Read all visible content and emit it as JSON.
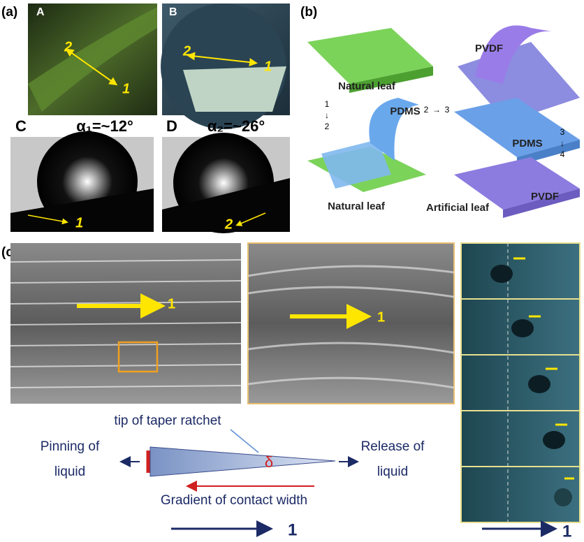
{
  "panel_a": {
    "label": "(a)",
    "photos": [
      {
        "label": "A",
        "start": "2",
        "end": "1"
      },
      {
        "label": "B",
        "start": "2",
        "end": "1"
      }
    ],
    "droplets": [
      {
        "label": "C",
        "angle": "α₁=~12°",
        "arrow": "1"
      },
      {
        "label": "D",
        "angle": "α₂=~26°",
        "arrow": "2"
      }
    ]
  },
  "panel_b": {
    "label": "(b)",
    "labels": [
      "Natural leaf",
      "PVDF",
      "PDMS",
      "PDMS",
      "Natural leaf",
      "Artificial leaf",
      "PVDF"
    ],
    "steps": [
      {
        "from": "1",
        "arrow": "↓",
        "to": "2"
      },
      {
        "from": "2",
        "arrow": "→",
        "to": "3"
      },
      {
        "from": "3",
        "arrow": "↓",
        "to": "4"
      }
    ]
  },
  "panel_c": {
    "label": "(c)",
    "sem": [
      "1",
      "1"
    ],
    "tip": "tip of taper ratchet",
    "pinning": [
      "Pinning of",
      "liquid"
    ],
    "release": [
      "Release of",
      "liquid"
    ],
    "delta": "δ",
    "gradient": "Gradient of contact width",
    "bottom": [
      "1",
      "1"
    ]
  }
}
